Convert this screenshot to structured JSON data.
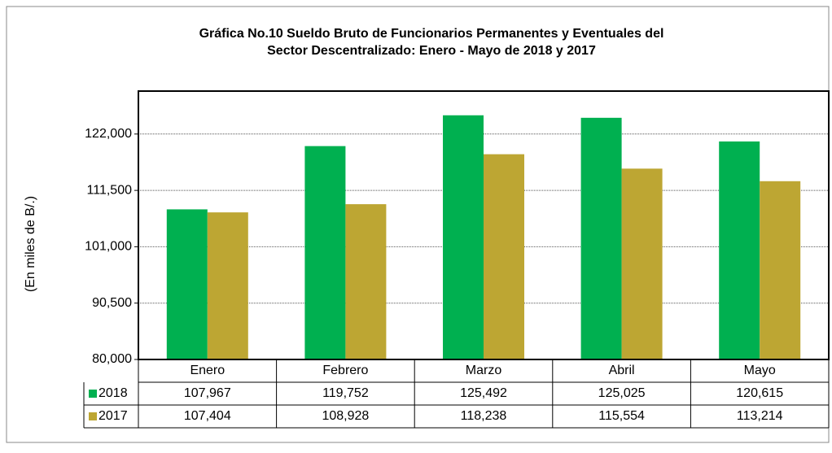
{
  "chart_data": {
    "type": "bar",
    "title": [
      "Gráfica No.10 Sueldo Bruto de Funcionarios Permanentes y Eventuales del",
      "Sector Descentralizado: Enero - Mayo de 2018 y 2017"
    ],
    "y_label": "(En miles de B/.)",
    "categories": [
      "Enero",
      "Febrero",
      "Marzo",
      "Abril",
      "Mayo"
    ],
    "series": [
      {
        "name": "2018",
        "color": "#00b050",
        "values": [
          107967,
          119752,
          125492,
          125025,
          120615
        ],
        "value_labels": [
          "107,967",
          "119,752",
          "125,492",
          "125,025",
          "120,615"
        ]
      },
      {
        "name": "2017",
        "color": "#bda633",
        "values": [
          107404,
          108928,
          118238,
          115554,
          113214
        ],
        "value_labels": [
          "107,404",
          "108,928",
          "118,238",
          "115,554",
          "113,214"
        ]
      }
    ],
    "ylim": [
      80000,
      130000
    ],
    "yticks": [
      {
        "value": 80000,
        "label": "80,000"
      },
      {
        "value": 90500,
        "label": "90,500"
      },
      {
        "value": 101000,
        "label": "101,000"
      },
      {
        "value": 111500,
        "label": "111,500"
      },
      {
        "value": 122000,
        "label": "122,000"
      }
    ],
    "grid": true
  }
}
